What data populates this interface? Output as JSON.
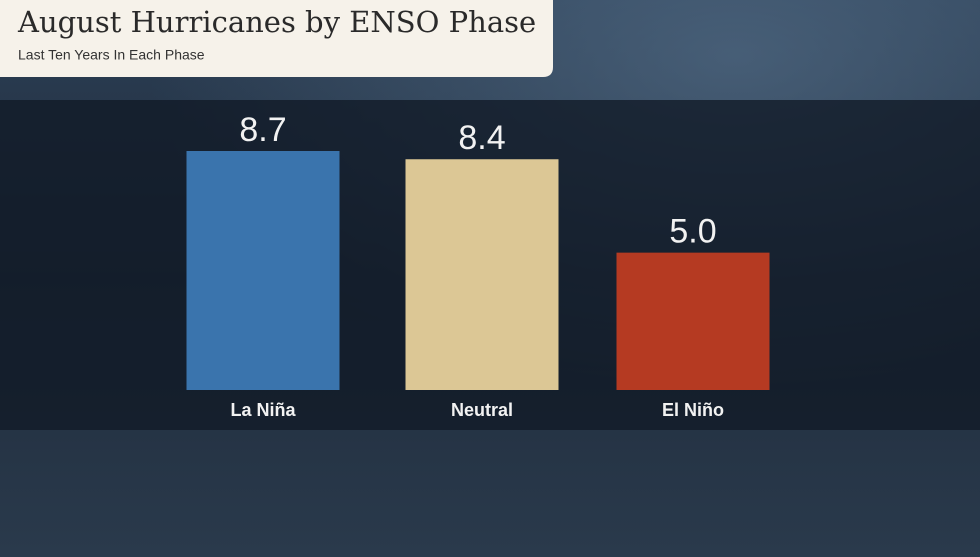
{
  "chart_data": {
    "type": "bar",
    "title": "August Hurricanes by ENSO Phase",
    "subtitle": "Last Ten Years In Each Phase",
    "categories": [
      "La Niña",
      "Neutral",
      "El Niño"
    ],
    "values": [
      8.7,
      8.4,
      5.0
    ],
    "value_labels": [
      "8.7",
      "8.4",
      "5.0"
    ],
    "colors": [
      "#3a74ad",
      "#dcc795",
      "#b53a22"
    ]
  }
}
